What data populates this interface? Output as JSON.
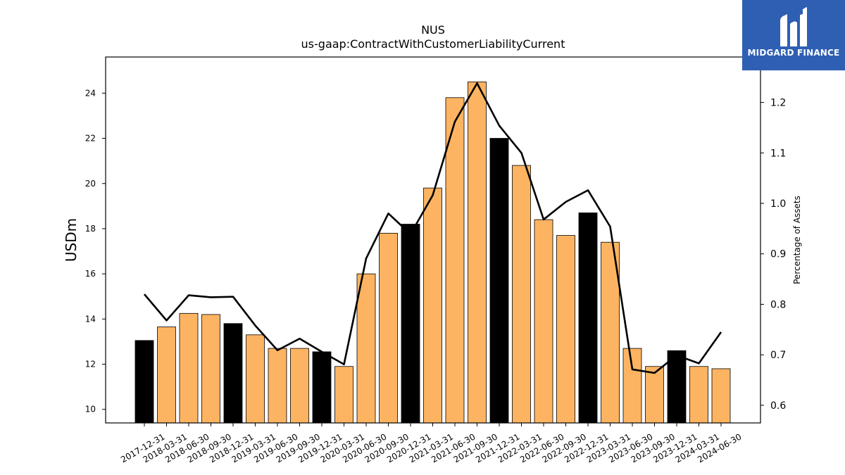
{
  "brand": {
    "name": "MIDGARD FINANCE",
    "background": "#2f5fb3",
    "icon": "midgard-logo-icon"
  },
  "chart_data": {
    "type": "bar",
    "title": "NUS",
    "subtitle": "us-gaap:ContractWithCustomerLiabilityCurrent",
    "ylabel": "USDm",
    "ylabel_right": "Percentage of Assets",
    "ylim": [
      9.4,
      25.6
    ],
    "ylim_right": [
      0.565,
      1.29
    ],
    "yticks": [
      10,
      12,
      14,
      16,
      18,
      20,
      22,
      24
    ],
    "yticks_right": [
      0.6,
      0.7,
      0.8,
      0.9,
      1.0,
      1.1,
      1.2
    ],
    "categories": [
      "2017-12-31",
      "2018-03-31",
      "2018-06-30",
      "2018-09-30",
      "2018-12-31",
      "2019-03-31",
      "2019-06-30",
      "2019-09-30",
      "2019-12-31",
      "2020-03-31",
      "2020-06-30",
      "2020-09-30",
      "2020-12-31",
      "2021-03-31",
      "2021-06-30",
      "2021-09-30",
      "2021-12-31",
      "2022-03-31",
      "2022-06-30",
      "2022-09-30",
      "2022-12-31",
      "2023-03-31",
      "2023-06-30",
      "2023-09-30",
      "2023-12-31",
      "2024-03-31",
      "2024-06-30"
    ],
    "series": [
      {
        "type": "bar",
        "values": [
          13.05,
          13.65,
          14.25,
          14.2,
          13.8,
          13.3,
          12.7,
          12.7,
          12.55,
          11.9,
          16.0,
          17.8,
          18.2,
          19.8,
          23.8,
          24.5,
          22.0,
          20.8,
          18.4,
          17.7,
          18.7,
          17.4,
          12.7,
          11.9,
          12.6,
          11.9,
          11.8
        ],
        "highlight": [
          true,
          false,
          false,
          false,
          true,
          false,
          false,
          false,
          true,
          false,
          false,
          false,
          true,
          false,
          false,
          false,
          true,
          false,
          false,
          false,
          true,
          false,
          false,
          false,
          true,
          false,
          false
        ],
        "color": "#fdb462",
        "highlight_color": "#000000"
      },
      {
        "type": "line",
        "axis": "right",
        "values": [
          0.82,
          0.768,
          0.818,
          0.814,
          0.815,
          0.758,
          0.709,
          0.732,
          0.706,
          0.681,
          0.891,
          0.98,
          0.939,
          1.016,
          1.162,
          1.238,
          1.154,
          1.1,
          0.968,
          1.003,
          1.026,
          0.954,
          0.671,
          0.664,
          0.699,
          0.683,
          0.745
        ],
        "color": "#000000"
      }
    ]
  }
}
